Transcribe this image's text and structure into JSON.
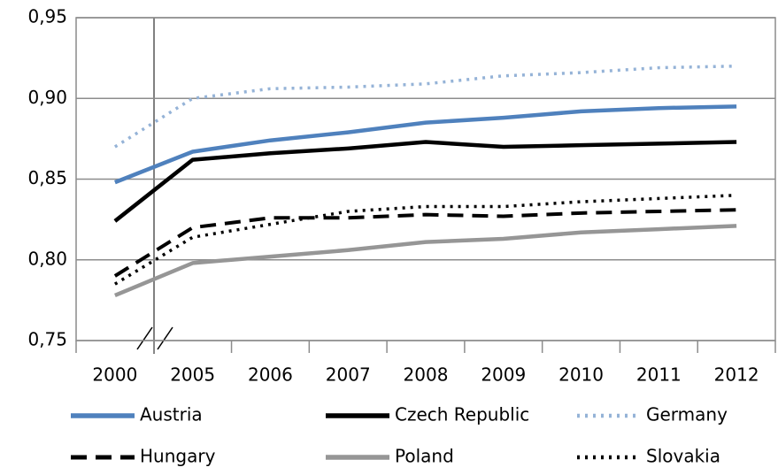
{
  "chart_data": {
    "type": "line",
    "categories": [
      "2000",
      "2005",
      "2006",
      "2007",
      "2008",
      "2009",
      "2010",
      "2011",
      "2012"
    ],
    "series": [
      {
        "name": "Austria",
        "color": "#4f81bd",
        "style": "solid",
        "values": [
          0.848,
          0.867,
          0.874,
          0.879,
          0.885,
          0.888,
          0.892,
          0.894,
          0.895
        ]
      },
      {
        "name": "Czech Republic",
        "color": "#000000",
        "style": "solid",
        "values": [
          0.824,
          0.862,
          0.866,
          0.869,
          0.873,
          0.87,
          0.871,
          0.872,
          0.873
        ]
      },
      {
        "name": "Germany",
        "color": "#95b3d7",
        "style": "dotted",
        "values": [
          0.87,
          0.9,
          0.906,
          0.907,
          0.909,
          0.914,
          0.916,
          0.919,
          0.92
        ]
      },
      {
        "name": "Hungary",
        "color": "#000000",
        "style": "dashed",
        "values": [
          0.79,
          0.82,
          0.826,
          0.826,
          0.828,
          0.827,
          0.829,
          0.83,
          0.831
        ]
      },
      {
        "name": "Poland",
        "color": "#969696",
        "style": "solid",
        "values": [
          0.778,
          0.798,
          0.802,
          0.806,
          0.811,
          0.813,
          0.817,
          0.819,
          0.821
        ]
      },
      {
        "name": "Slovakia",
        "color": "#000000",
        "style": "dotted",
        "values": [
          0.785,
          0.814,
          0.822,
          0.83,
          0.833,
          0.833,
          0.836,
          0.838,
          0.84
        ]
      }
    ],
    "ylim": [
      0.75,
      0.95
    ],
    "yticks": [
      {
        "value": 0.75,
        "label": "0,75"
      },
      {
        "value": 0.8,
        "label": "0,80"
      },
      {
        "value": 0.85,
        "label": "0,85"
      },
      {
        "value": 0.9,
        "label": "0,90"
      },
      {
        "value": 0.95,
        "label": "0,95"
      }
    ],
    "grid": true
  }
}
